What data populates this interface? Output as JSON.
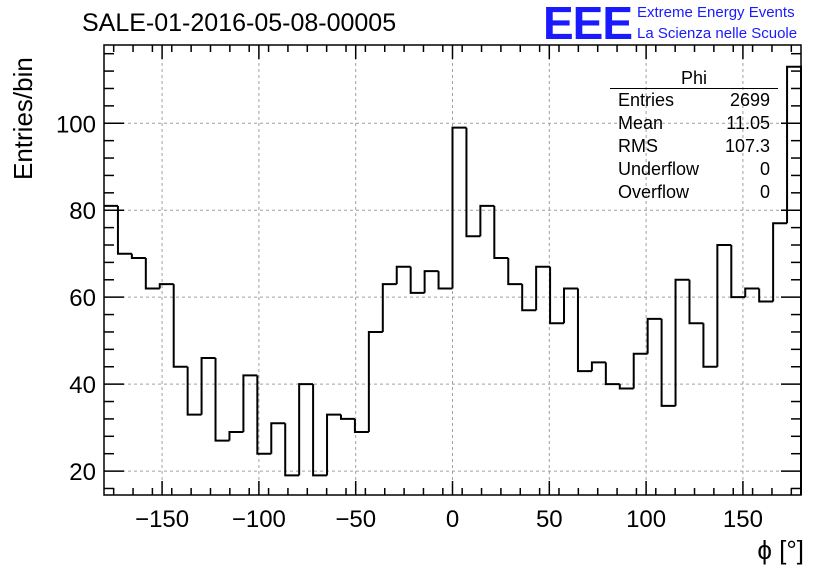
{
  "title": "SALE-01-2016-05-08-00005",
  "logo": {
    "mark": "EEE",
    "line1": "Extreme Energy Events",
    "line2": "La Scienza nelle Scuole"
  },
  "stats_box": {
    "header": "Phi",
    "rows": [
      {
        "label": "Entries",
        "value": "2699"
      },
      {
        "label": "Mean",
        "value": "11.05"
      },
      {
        "label": "RMS",
        "value": "107.3"
      },
      {
        "label": "Underflow",
        "value": "0"
      },
      {
        "label": "Overflow",
        "value": "0"
      }
    ]
  },
  "chart_data": {
    "type": "bar",
    "style": "step-histogram",
    "xlabel": "ϕ [°]",
    "ylabel": "Entries/bin",
    "xlim": [
      -180,
      180
    ],
    "ylim": [
      14.5,
      118
    ],
    "bin_width": 7.2,
    "x_ticks": [
      -150,
      -100,
      -50,
      0,
      50,
      100,
      150
    ],
    "y_ticks": [
      20,
      40,
      60,
      80,
      100
    ],
    "grid": true,
    "values": [
      81,
      70,
      69,
      62,
      63,
      44,
      33,
      46,
      27,
      29,
      42,
      24,
      31,
      19,
      40,
      19,
      33,
      32,
      29,
      52,
      63,
      67,
      61,
      66,
      62,
      99,
      74,
      81,
      69,
      63,
      57,
      67,
      54,
      62,
      43,
      45,
      40,
      39,
      47,
      55,
      35,
      64,
      54,
      44,
      72,
      60,
      62,
      59,
      77,
      113
    ],
    "colors": {
      "line": "#000000",
      "grid": "#a0a0a0"
    }
  }
}
